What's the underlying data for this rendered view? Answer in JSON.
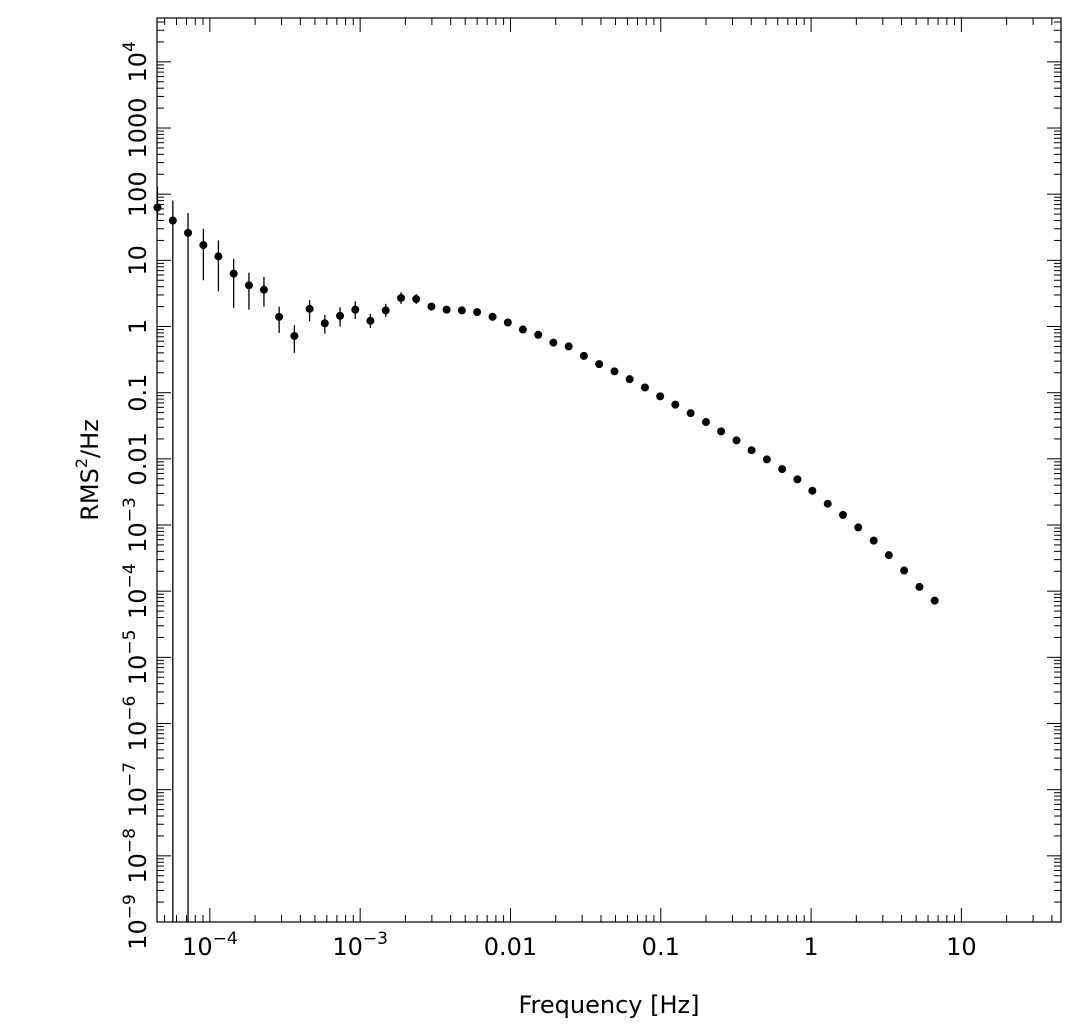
{
  "chart_data": {
    "type": "scatter",
    "xlabel": "Frequency [Hz]",
    "ylabel_base": "RMS",
    "ylabel_exp": "2",
    "ylabel_rest": "/Hz",
    "x_scale": "log",
    "y_scale": "log",
    "xlim": [
      4.45e-05,
      46
    ],
    "ylim": [
      1e-09,
      46000
    ],
    "grid": false,
    "marker_color": "#000000",
    "x_ticks": [
      {
        "value": 0.0001,
        "base": "10",
        "exp": "−4"
      },
      {
        "value": 0.001,
        "base": "10",
        "exp": "−3"
      },
      {
        "value": 0.01,
        "label": "0.01"
      },
      {
        "value": 0.1,
        "label": "0.1"
      },
      {
        "value": 1,
        "label": "1"
      },
      {
        "value": 10,
        "label": "10"
      }
    ],
    "y_ticks": [
      {
        "value": 1e-09,
        "base": "10",
        "exp": "−9"
      },
      {
        "value": 1e-08,
        "base": "10",
        "exp": "−8"
      },
      {
        "value": 1e-07,
        "base": "10",
        "exp": "−7"
      },
      {
        "value": 1e-06,
        "base": "10",
        "exp": "−6"
      },
      {
        "value": 1e-05,
        "base": "10",
        "exp": "−5"
      },
      {
        "value": 0.0001,
        "base": "10",
        "exp": "−4"
      },
      {
        "value": 0.001,
        "base": "10",
        "exp": "−3"
      },
      {
        "value": 0.01,
        "label": "0.01"
      },
      {
        "value": 0.1,
        "label": "0.1"
      },
      {
        "value": 1,
        "label": "1"
      },
      {
        "value": 10,
        "label": "10"
      },
      {
        "value": 100,
        "label": "100"
      },
      {
        "value": 1000,
        "label": "1000"
      },
      {
        "value": 10000,
        "base": "10",
        "exp": "4"
      }
    ],
    "points": [
      {
        "x": 4.48e-05,
        "y": 63,
        "ylo": 40,
        "yhi": 130
      },
      {
        "x": 5.67e-05,
        "y": 40,
        "ylo": 1e-09,
        "yhi": 80
      },
      {
        "x": 7.16e-05,
        "y": 26,
        "ylo": 1e-09,
        "yhi": 52
      },
      {
        "x": 9.05e-05,
        "y": 17,
        "ylo": 5,
        "yhi": 30
      },
      {
        "x": 0.000114,
        "y": 11.5,
        "ylo": 3.4,
        "yhi": 20
      },
      {
        "x": 0.000144,
        "y": 6.3,
        "ylo": 1.9,
        "yhi": 10.5
      },
      {
        "x": 0.000182,
        "y": 4.2,
        "ylo": 1.8,
        "yhi": 6.5
      },
      {
        "x": 0.000229,
        "y": 3.6,
        "ylo": 2.0,
        "yhi": 5.6
      },
      {
        "x": 0.000289,
        "y": 1.4,
        "ylo": 0.8,
        "yhi": 2.0
      },
      {
        "x": 0.000365,
        "y": 0.72,
        "ylo": 0.4,
        "yhi": 1.05
      },
      {
        "x": 0.000461,
        "y": 1.85,
        "ylo": 1.2,
        "yhi": 2.5
      },
      {
        "x": 0.000582,
        "y": 1.12,
        "ylo": 0.78,
        "yhi": 1.5
      },
      {
        "x": 0.000735,
        "y": 1.45,
        "ylo": 1.0,
        "yhi": 1.95
      },
      {
        "x": 0.000928,
        "y": 1.8,
        "ylo": 1.3,
        "yhi": 2.4
      },
      {
        "x": 0.00117,
        "y": 1.22,
        "ylo": 0.95,
        "yhi": 1.55
      },
      {
        "x": 0.00148,
        "y": 1.75,
        "ylo": 1.4,
        "yhi": 2.2
      },
      {
        "x": 0.00187,
        "y": 2.7,
        "ylo": 2.2,
        "yhi": 3.3
      },
      {
        "x": 0.00236,
        "y": 2.6,
        "ylo": 2.2,
        "yhi": 3.1
      },
      {
        "x": 0.00298,
        "y": 2.0,
        "ylo": 1.8,
        "yhi": 2.25
      },
      {
        "x": 0.00376,
        "y": 1.8
      },
      {
        "x": 0.00475,
        "y": 1.75
      },
      {
        "x": 0.006,
        "y": 1.65
      },
      {
        "x": 0.0076,
        "y": 1.4
      },
      {
        "x": 0.0096,
        "y": 1.15
      },
      {
        "x": 0.0121,
        "y": 0.9
      },
      {
        "x": 0.0153,
        "y": 0.75
      },
      {
        "x": 0.0193,
        "y": 0.57
      },
      {
        "x": 0.0244,
        "y": 0.5
      },
      {
        "x": 0.0308,
        "y": 0.36
      },
      {
        "x": 0.0389,
        "y": 0.27
      },
      {
        "x": 0.0492,
        "y": 0.21
      },
      {
        "x": 0.0621,
        "y": 0.16
      },
      {
        "x": 0.0785,
        "y": 0.12
      },
      {
        "x": 0.0991,
        "y": 0.088
      },
      {
        "x": 0.125,
        "y": 0.066
      },
      {
        "x": 0.158,
        "y": 0.049
      },
      {
        "x": 0.2,
        "y": 0.036
      },
      {
        "x": 0.252,
        "y": 0.026
      },
      {
        "x": 0.319,
        "y": 0.019
      },
      {
        "x": 0.402,
        "y": 0.0135
      },
      {
        "x": 0.508,
        "y": 0.0098
      },
      {
        "x": 0.642,
        "y": 0.007
      },
      {
        "x": 0.811,
        "y": 0.0049
      },
      {
        "x": 1.02,
        "y": 0.0033
      },
      {
        "x": 1.29,
        "y": 0.0021
      },
      {
        "x": 1.63,
        "y": 0.00142
      },
      {
        "x": 2.06,
        "y": 0.00092
      },
      {
        "x": 2.61,
        "y": 0.00058
      },
      {
        "x": 3.29,
        "y": 0.00035
      },
      {
        "x": 4.16,
        "y": 0.000205
      },
      {
        "x": 5.26,
        "y": 0.000116
      },
      {
        "x": 6.64,
        "y": 7.2e-05
      }
    ]
  }
}
